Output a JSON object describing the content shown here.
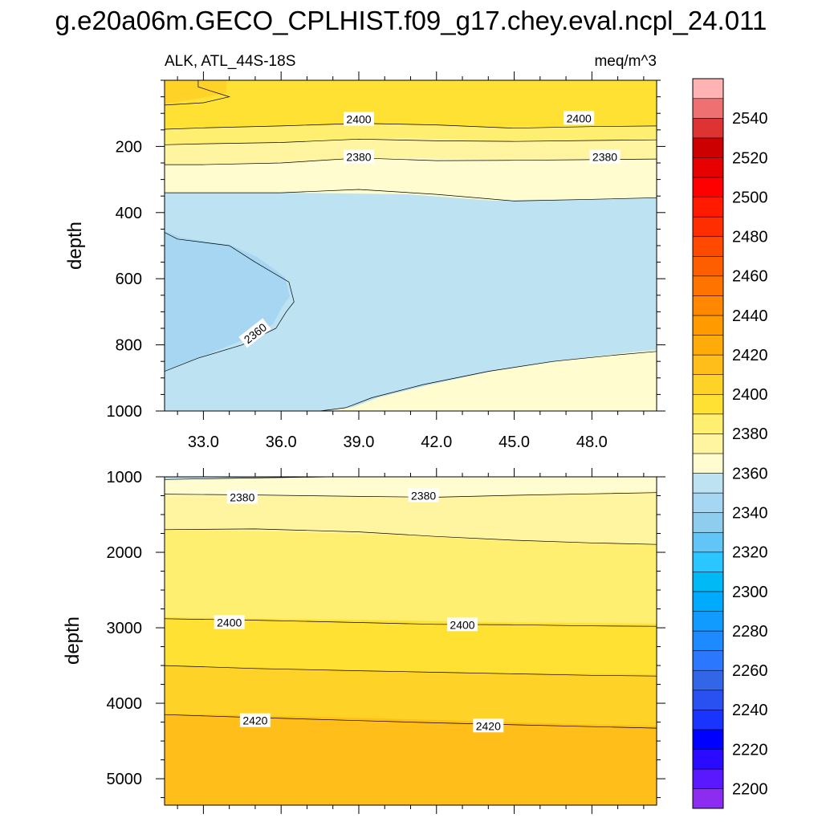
{
  "chart_data": {
    "type": "contour",
    "title": "g.e20a06m.GECO_CPLHIST.f09_g17.chey.eval.ncpl_24.011",
    "subtitle_left": "ALK, ATL_44S-18S",
    "subtitle_right": "meq/m^3",
    "xlabel": "",
    "ylabel": "depth",
    "x_ticks": [
      "33.0",
      "36.0",
      "39.0",
      "42.0",
      "45.0",
      "48.0"
    ],
    "x_tick_values": [
      33,
      36,
      39,
      42,
      45,
      48
    ],
    "xlim": [
      31.5,
      50.5
    ],
    "panels": [
      {
        "name": "upper",
        "ylim": [
          0,
          1000
        ],
        "y_reversed": true,
        "y_ticks": [
          "200",
          "400",
          "600",
          "800",
          "1000"
        ],
        "y_tick_values": [
          200,
          400,
          600,
          800,
          1000
        ],
        "contour_lines": [
          {
            "level": 2410,
            "points": [
              [
                31.5,
                75
              ],
              [
                33,
                68
              ],
              [
                34,
                50
              ],
              [
                33.8,
                45
              ],
              [
                33.2,
                30
              ],
              [
                32.8,
                20
              ],
              [
                32.8,
                0
              ]
            ]
          },
          {
            "level": 2400,
            "points": [
              [
                31.5,
                148
              ],
              [
                33,
                144
              ],
              [
                36,
                138
              ],
              [
                39,
                130
              ],
              [
                42,
                135
              ],
              [
                45,
                145
              ],
              [
                48,
                140
              ],
              [
                50.5,
                138
              ]
            ]
          },
          {
            "level": 2390,
            "points": [
              [
                31.5,
                195
              ],
              [
                33,
                192
              ],
              [
                36,
                188
              ],
              [
                39,
                178
              ],
              [
                42,
                183
              ],
              [
                45,
                185
              ],
              [
                48,
                182
              ],
              [
                50.5,
                180
              ]
            ]
          },
          {
            "level": 2380,
            "points": [
              [
                31.5,
                255
              ],
              [
                33,
                255
              ],
              [
                36,
                250
              ],
              [
                39,
                235
              ],
              [
                42,
                243
              ],
              [
                45,
                242
              ],
              [
                48,
                240
              ],
              [
                50.5,
                238
              ]
            ]
          },
          {
            "level": 2370,
            "points": [
              [
                31.5,
                340
              ],
              [
                33,
                340
              ],
              [
                36,
                340
              ],
              [
                39,
                330
              ],
              [
                42,
                345
              ],
              [
                45,
                365
              ],
              [
                48,
                360
              ],
              [
                50.5,
                355
              ]
            ]
          },
          {
            "level": 2360,
            "points": [
              [
                31.5,
                460
              ],
              [
                32,
                480
              ],
              [
                33,
                490
              ],
              [
                34,
                500
              ],
              [
                35,
                550
              ],
              [
                36.3,
                610
              ],
              [
                36.5,
                670
              ],
              [
                36.2,
                700
              ],
              [
                35.8,
                750
              ],
              [
                34.5,
                800
              ],
              [
                32.8,
                840
              ],
              [
                31.5,
                880
              ]
            ]
          },
          {
            "level": 2370,
            "points": [
              [
                37.5,
                1000
              ],
              [
                38.5,
                990
              ],
              [
                39.5,
                960
              ],
              [
                41.5,
                920
              ],
              [
                44,
                880
              ],
              [
                46.5,
                850
              ],
              [
                49,
                830
              ],
              [
                50.5,
                820
              ]
            ]
          }
        ],
        "contour_labels": [
          {
            "text": "2400",
            "x": 39,
            "y": 118,
            "angle": 0
          },
          {
            "text": "2400",
            "x": 47.5,
            "y": 115,
            "angle": 0
          },
          {
            "text": "2380",
            "x": 39,
            "y": 232,
            "angle": 0
          },
          {
            "text": "2380",
            "x": 48.5,
            "y": 232,
            "angle": 0
          },
          {
            "text": "2360",
            "x": 35,
            "y": 765,
            "angle": -38
          }
        ]
      },
      {
        "name": "lower",
        "ylim": [
          1000,
          5350
        ],
        "y_reversed": true,
        "y_ticks": [
          "1000",
          "2000",
          "3000",
          "4000",
          "5000"
        ],
        "y_tick_values": [
          1000,
          2000,
          3000,
          4000,
          5000
        ],
        "contour_lines": [
          {
            "level": 2370,
            "points": [
              [
                31.5,
                1035
              ],
              [
                34,
                1020
              ],
              [
                36,
                1010
              ],
              [
                38,
                1000
              ]
            ]
          },
          {
            "level": 2380,
            "points": [
              [
                31.5,
                1230
              ],
              [
                35,
                1240
              ],
              [
                39,
                1260
              ],
              [
                42,
                1270
              ],
              [
                45,
                1245
              ],
              [
                48,
                1225
              ],
              [
                50.5,
                1210
              ]
            ]
          },
          {
            "level": 2390,
            "points": [
              [
                31.5,
                1700
              ],
              [
                35,
                1690
              ],
              [
                39,
                1730
              ],
              [
                42,
                1790
              ],
              [
                45,
                1840
              ],
              [
                48,
                1875
              ],
              [
                50.5,
                1895
              ]
            ]
          },
          {
            "level": 2400,
            "points": [
              [
                31.5,
                2880
              ],
              [
                35,
                2900
              ],
              [
                39,
                2930
              ],
              [
                42,
                2955
              ],
              [
                45,
                2960
              ],
              [
                48,
                2975
              ],
              [
                50.5,
                2980
              ]
            ]
          },
          {
            "level": 2410,
            "points": [
              [
                31.5,
                3500
              ],
              [
                35,
                3540
              ],
              [
                39,
                3570
              ],
              [
                42,
                3590
              ],
              [
                45,
                3610
              ],
              [
                48,
                3630
              ],
              [
                50.5,
                3640
              ]
            ]
          },
          {
            "level": 2420,
            "points": [
              [
                31.5,
                4150
              ],
              [
                35,
                4190
              ],
              [
                39,
                4230
              ],
              [
                42,
                4260
              ],
              [
                45,
                4285
              ],
              [
                48,
                4310
              ],
              [
                50.5,
                4330
              ]
            ]
          }
        ],
        "contour_labels": [
          {
            "text": "2380",
            "x": 34.5,
            "y": 1270,
            "angle": 0
          },
          {
            "text": "2380",
            "x": 41.5,
            "y": 1250,
            "angle": 0
          },
          {
            "text": "2400",
            "x": 34,
            "y": 2930,
            "angle": 0
          },
          {
            "text": "2400",
            "x": 43,
            "y": 2960,
            "angle": 0
          },
          {
            "text": "2420",
            "x": 35,
            "y": 4230,
            "angle": 0
          },
          {
            "text": "2420",
            "x": 44,
            "y": 4300,
            "angle": 0
          }
        ]
      }
    ],
    "colorbar": {
      "labels": [
        "2200",
        "2220",
        "2240",
        "2260",
        "2280",
        "2300",
        "2320",
        "2340",
        "2360",
        "2380",
        "2400",
        "2420",
        "2440",
        "2460",
        "2480",
        "2500",
        "2520",
        "2540"
      ],
      "label_values": [
        2200,
        2220,
        2240,
        2260,
        2280,
        2300,
        2320,
        2340,
        2360,
        2380,
        2400,
        2420,
        2440,
        2460,
        2480,
        2500,
        2520,
        2540
      ],
      "levels_min": 2190,
      "levels_step": 10,
      "colors": [
        "#8c2cf0",
        "#5a18ff",
        "#2b0bff",
        "#0000ff",
        "#1a33ff",
        "#2950f0",
        "#3366e6",
        "#2b78ff",
        "#1e8aff",
        "#119bff",
        "#00abff",
        "#00b9f5",
        "#29c6ff",
        "#61c6f5",
        "#8fcdee",
        "#a6d6f2",
        "#bde2f2",
        "#fffdd0",
        "#fff5a0",
        "#ffef70",
        "#ffe133",
        "#ffd228",
        "#ffbe1a",
        "#ffac0a",
        "#ff9a00",
        "#ff8800",
        "#ff7300",
        "#ff5e00",
        "#ff4a00",
        "#ff2e00",
        "#ff1a00",
        "#ff0000",
        "#e60000",
        "#cc0000",
        "#dd3333",
        "#ee7070",
        "#ffb3b3"
      ]
    }
  }
}
